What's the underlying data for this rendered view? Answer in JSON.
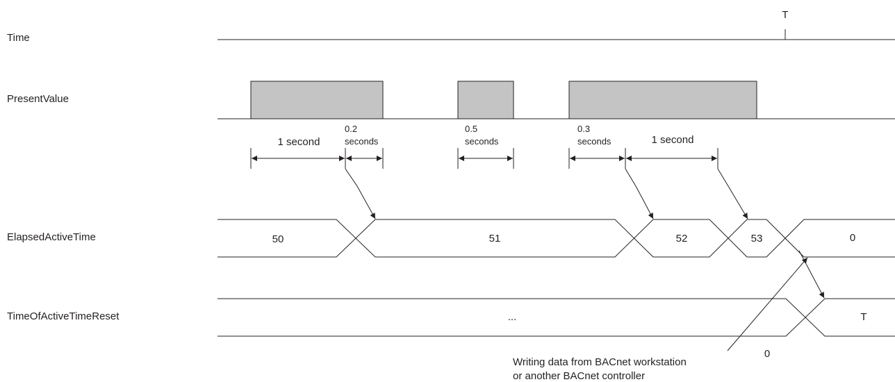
{
  "rows": {
    "time": "Time",
    "present_value": "PresentValue",
    "elapsed_active_time": "ElapsedActiveTime",
    "time_of_reset": "TimeOfActiveTimeReset"
  },
  "time_marker": "T",
  "durations": {
    "d1": "1 second",
    "d2_num": "0.2",
    "d2_unit": "seconds",
    "d3_num": "0.5",
    "d3_unit": "seconds",
    "d4_num": "0.3",
    "d4_unit": "seconds",
    "d5": "1 second"
  },
  "elapsed_values": [
    "50",
    "51",
    "52",
    "53",
    "0"
  ],
  "reset_values": {
    "before": "...",
    "after": "T",
    "old": "0"
  },
  "annotation": {
    "line1": "Writing data from BACnet workstation",
    "line2": "or another BACnet controller"
  },
  "colors": {
    "line": "#231f20",
    "pulse_fill": "#c4c4c4"
  }
}
